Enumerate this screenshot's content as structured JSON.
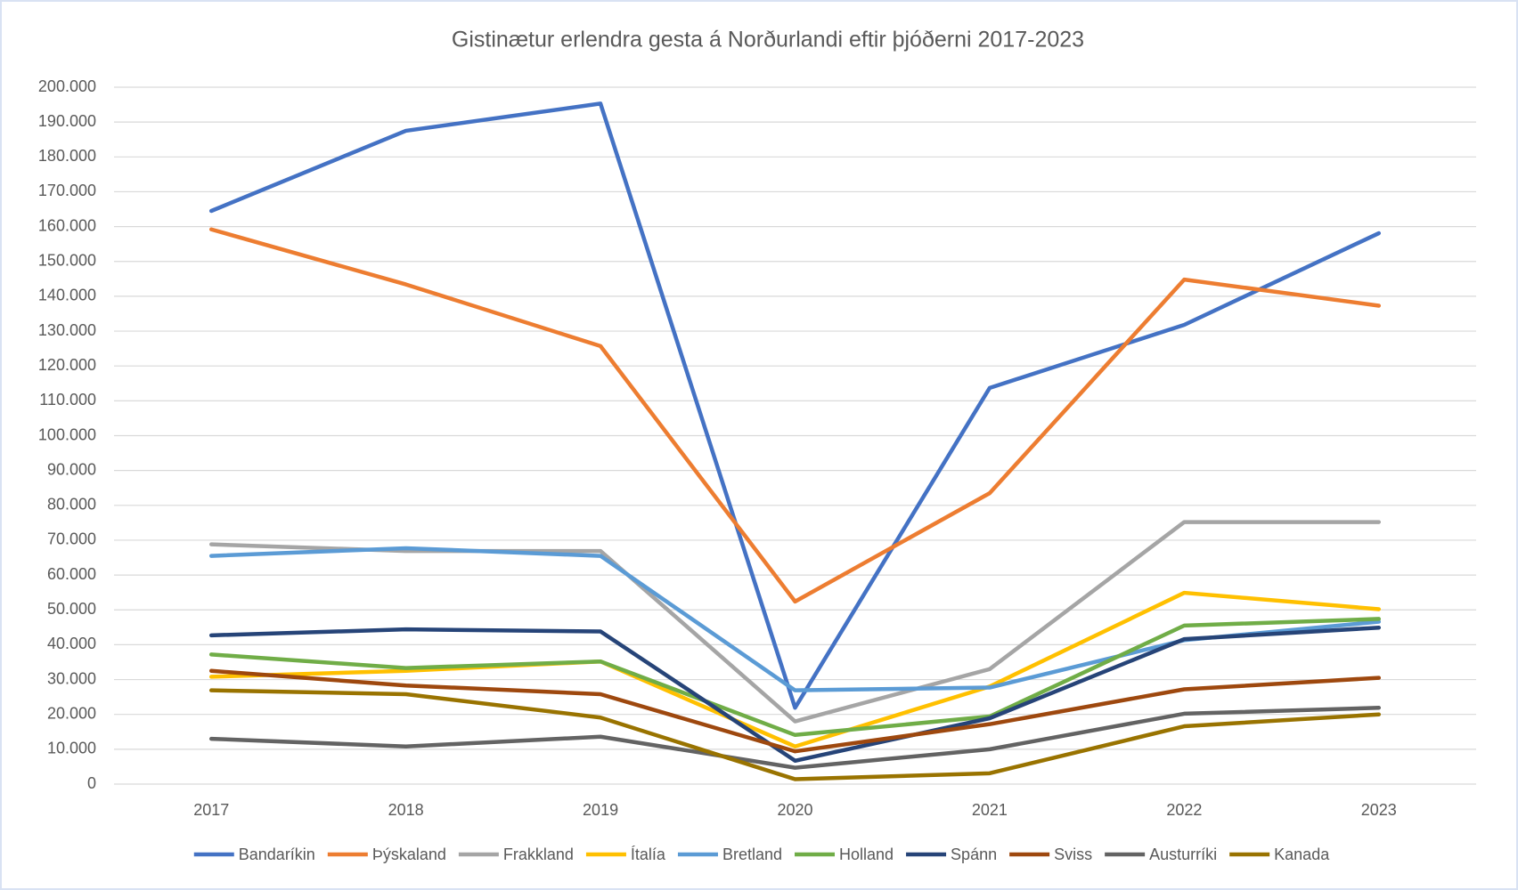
{
  "chart_data": {
    "type": "line",
    "title": "Gistinætur erlendra gesta á Norðurlandi eftir þjóðerni 2017-2023",
    "categories": [
      "2017",
      "2018",
      "2019",
      "2020",
      "2021",
      "2022",
      "2023"
    ],
    "series": [
      {
        "name": "Bandaríkin",
        "color": "#4472c4",
        "values": [
          164500,
          187500,
          195300,
          21900,
          113700,
          131800,
          158100
        ]
      },
      {
        "name": "Þýskaland",
        "color": "#ed7d31",
        "values": [
          159200,
          143400,
          125700,
          52400,
          83500,
          144800,
          137300
        ]
      },
      {
        "name": "Frakkland",
        "color": "#a5a5a5",
        "values": [
          68800,
          66900,
          66900,
          18000,
          33000,
          75200,
          75200
        ]
      },
      {
        "name": "Ítalía",
        "color": "#ffc000",
        "values": [
          30800,
          32500,
          35200,
          10800,
          28000,
          54900,
          50200
        ]
      },
      {
        "name": "Bretland",
        "color": "#5b9bd5",
        "values": [
          65500,
          67700,
          65500,
          26900,
          27700,
          41300,
          46600
        ]
      },
      {
        "name": "Holland",
        "color": "#70ad47",
        "values": [
          37200,
          33300,
          35200,
          14100,
          19400,
          45500,
          47400
        ]
      },
      {
        "name": "Spánn",
        "color": "#264478",
        "values": [
          42700,
          44400,
          43800,
          6700,
          18900,
          41600,
          44900
        ]
      },
      {
        "name": "Sviss",
        "color": "#9e480e",
        "values": [
          32500,
          28300,
          25800,
          9400,
          17200,
          27200,
          30500
        ]
      },
      {
        "name": "Austurríki",
        "color": "#636363",
        "values": [
          13000,
          10800,
          13600,
          4700,
          10000,
          20200,
          21900
        ]
      },
      {
        "name": "Kanada",
        "color": "#997300",
        "values": [
          26900,
          25800,
          19100,
          1400,
          3100,
          16600,
          20000
        ]
      }
    ],
    "ylim": [
      0,
      200000
    ],
    "yticks": [
      0,
      {
        "value": 10000,
        "label": "10.000"
      },
      {
        "value": 20000,
        "label": "20.000"
      },
      {
        "value": 30000,
        "label": "30.000"
      },
      {
        "value": 40000,
        "label": "40.000"
      },
      {
        "value": 50000,
        "label": "50.000"
      },
      {
        "value": 60000,
        "label": "60.000"
      },
      {
        "value": 70000,
        "label": "70.000"
      },
      {
        "value": 80000,
        "label": "80.000"
      },
      {
        "value": 90000,
        "label": "90.000"
      },
      {
        "value": 100000,
        "label": "100.000"
      },
      {
        "value": 110000,
        "label": "110.000"
      },
      {
        "value": 120000,
        "label": "120.000"
      },
      {
        "value": 130000,
        "label": "130.000"
      },
      {
        "value": 140000,
        "label": "140.000"
      },
      {
        "value": 150000,
        "label": "150.000"
      },
      {
        "value": 160000,
        "label": "160.000"
      },
      {
        "value": 170000,
        "label": "170.000"
      },
      {
        "value": 180000,
        "label": "180.000"
      },
      {
        "value": 190000,
        "label": "190.000"
      },
      {
        "value": 200000,
        "label": "200.000"
      }
    ],
    "grid": true,
    "legend": "bottom"
  }
}
